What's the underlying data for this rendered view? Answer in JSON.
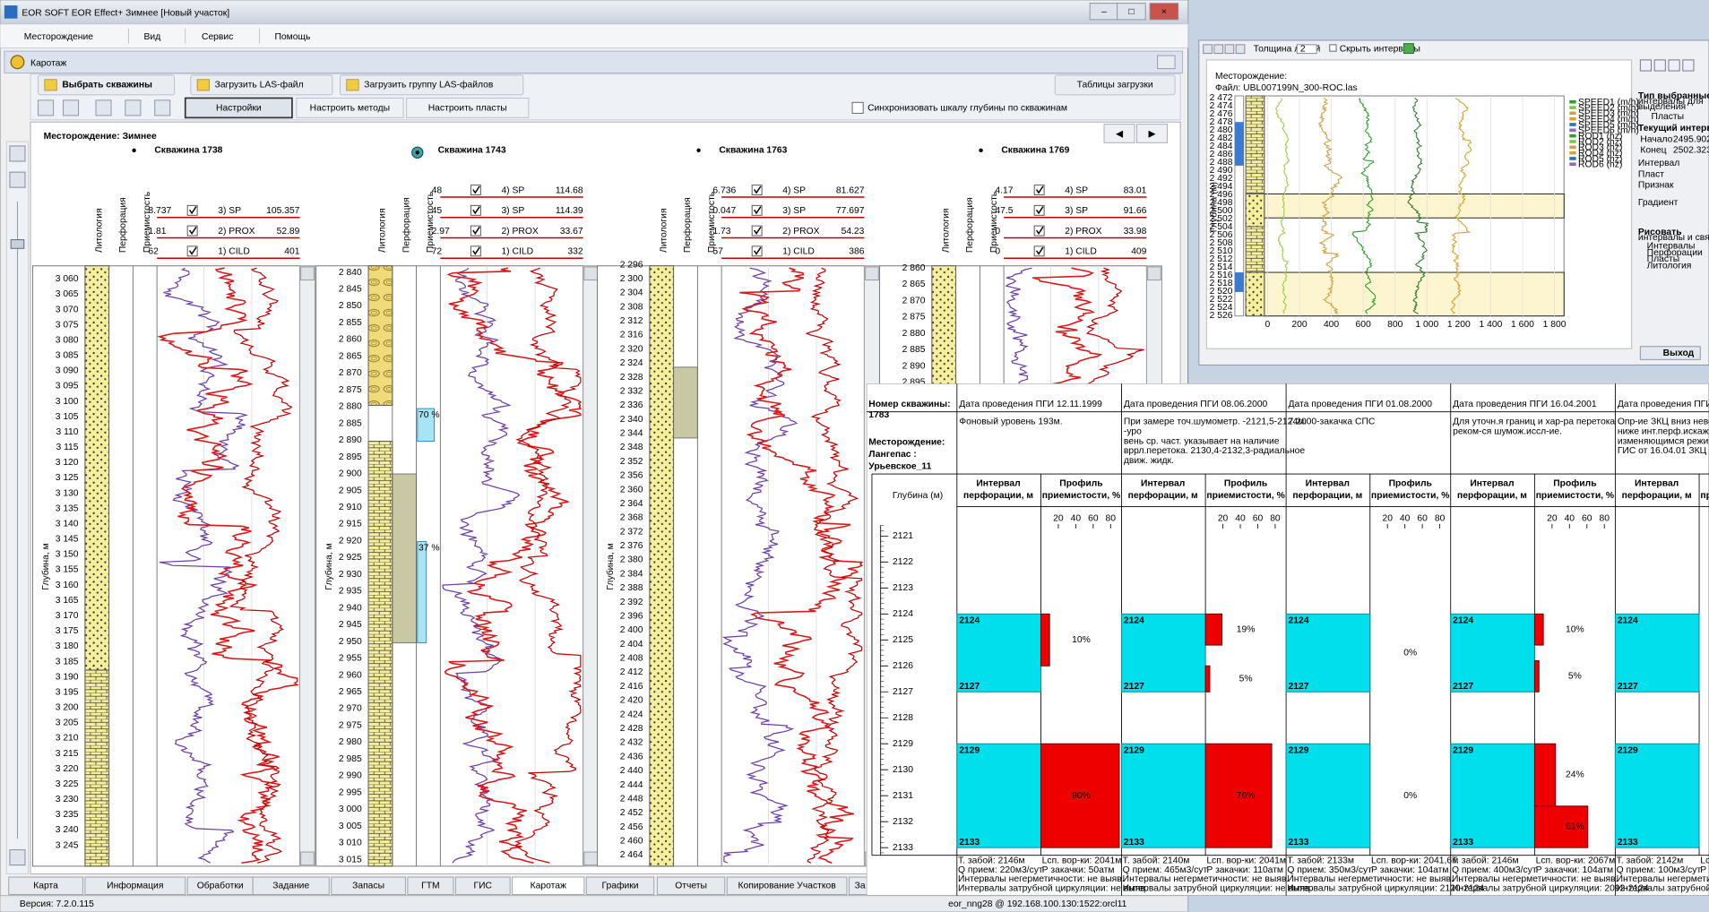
{
  "window": {
    "title": "EOR SOFT    EOR Effect+  Зимнее  [Новый участок]"
  },
  "menu": [
    "Месторождение",
    "Вид",
    "Сервис",
    "Помощь"
  ],
  "panel": {
    "title": "Каротаж",
    "toolbar": [
      "Выбрать скважины",
      "Загрузить LAS-файл",
      "Загрузить группу LAS-файлов",
      "Таблицы загрузки"
    ],
    "settings": [
      "Настройки",
      "Настроить методы",
      "Настроить пласты"
    ],
    "sync": "Синхронизовать шкалу глубины по скважинам"
  },
  "field": "Месторождение: Зимнее",
  "columns": [
    "Литология",
    "Перфорация",
    "Приемистость"
  ],
  "depth_label": "Глубина, м",
  "wells": [
    {
      "name": "Скважина 1738",
      "curves": [
        {
          "name": "3) SP",
          "min": "8.737",
          "max": "105.357",
          "color": "#c00000"
        },
        {
          "name": "2) PROX",
          "min": "1.81",
          "max": "52.89",
          "color": "#c00000"
        },
        {
          "name": "1) CILD",
          "min": "62",
          "max": "401",
          "color": "#c00000"
        }
      ],
      "depths": [
        "3 060",
        "3 065",
        "3 070",
        "3 075",
        "3 080",
        "3 085",
        "3 090",
        "3 095",
        "3 100",
        "3 105",
        "3 110",
        "3 115",
        "3 120",
        "3 125",
        "3 130",
        "3 135",
        "3 140",
        "3 145",
        "3 150",
        "3 155",
        "3 160",
        "3 165",
        "3 170",
        "3 175",
        "3 180",
        "3 185",
        "3 190",
        "3 195",
        "3 200",
        "3 205",
        "3 210",
        "3 215",
        "3 220",
        "3 225",
        "3 230",
        "3 235",
        "3 240",
        "3 245"
      ]
    },
    {
      "name": "Скважина 1743",
      "curves": [
        {
          "name": "4) SP",
          "min": "48",
          "max": "114.68",
          "color": "#c00000"
        },
        {
          "name": "3) SP",
          "min": "45",
          "max": "114.39",
          "color": "#c00000"
        },
        {
          "name": "2) PROX",
          "min": "2.97",
          "max": "33.67",
          "color": "#c00000"
        },
        {
          "name": "1) CILD",
          "min": "72",
          "max": "332",
          "color": "#c00000"
        }
      ],
      "depths": [
        "2 840",
        "2 845",
        "2 850",
        "2 855",
        "2 860",
        "2 865",
        "2 870",
        "2 875",
        "2 880",
        "2 885",
        "2 890",
        "2 895",
        "2 900",
        "2 905",
        "2 910",
        "2 915",
        "2 920",
        "2 925",
        "2 930",
        "2 935",
        "2 940",
        "2 945",
        "2 950",
        "2 955",
        "2 960",
        "2 965",
        "2 970",
        "2 975",
        "2 980",
        "2 985",
        "2 990",
        "2 995",
        "3 000",
        "3 005",
        "3 010",
        "3 015"
      ],
      "injectivity": [
        {
          "value": 70,
          "label": "70 %"
        },
        {
          "value": 37,
          "label": "37 %"
        }
      ]
    },
    {
      "name": "Скважина 1763",
      "curves": [
        {
          "name": "4) SP",
          "min": "6.736",
          "max": "81.627",
          "color": "#c00000"
        },
        {
          "name": "3) SP",
          "min": "0.047",
          "max": "77.697",
          "color": "#c00000"
        },
        {
          "name": "2) PROX",
          "min": "1.73",
          "max": "54.23",
          "color": "#c00000"
        },
        {
          "name": "1) CILD",
          "min": "57",
          "max": "386",
          "color": "#c00000"
        }
      ],
      "depths": [
        "2 296",
        "2 300",
        "2 304",
        "2 308",
        "2 312",
        "2 316",
        "2 320",
        "2 324",
        "2 328",
        "2 332",
        "2 336",
        "2 340",
        "2 344",
        "2 348",
        "2 352",
        "2 356",
        "2 360",
        "2 364",
        "2 368",
        "2 372",
        "2 376",
        "2 380",
        "2 384",
        "2 388",
        "2 392",
        "2 396",
        "2 400",
        "2 404",
        "2 408",
        "2 412",
        "2 416",
        "2 420",
        "2 424",
        "2 428",
        "2 432",
        "2 436",
        "2 440",
        "2 444",
        "2 448",
        "2 452",
        "2 456",
        "2 460",
        "2 464"
      ]
    },
    {
      "name": "Скважина 1769",
      "curves": [
        {
          "name": "4) SP",
          "min": "4.17",
          "max": "83.01",
          "color": "#c00000"
        },
        {
          "name": "3) SP",
          "min": "47.5",
          "max": "91.66",
          "color": "#c00000"
        },
        {
          "name": "2) PROX",
          "min": "0",
          "max": "33.98",
          "color": "#c00000"
        },
        {
          "name": "1) CILD",
          "min": "0",
          "max": "409",
          "color": "#c00000"
        }
      ],
      "depths": [
        "2 860",
        "2 865",
        "2 870",
        "2 875",
        "2 880",
        "2 885",
        "2 890",
        "2 895"
      ]
    }
  ],
  "tabs": [
    "Карта",
    "Информация",
    "Обработки",
    "Задание",
    "Запасы",
    "ГТМ",
    "ГИС",
    "Каротаж",
    "Графики",
    "Отчеты",
    "Копирование Участков",
    "За"
  ],
  "status": {
    "version": "Версия: 7.2.0.115",
    "connection": "eor_nng28 @ 192.168.100.130:1522:orcl11"
  },
  "plot_window": {
    "toolbar": [
      "Толщина линий",
      "2",
      "Скрыть интервалы"
    ],
    "field": "Месторождение:",
    "file": "Файл: UBL007199N_300-ROC.las",
    "depth_label": "Глубина (м)",
    "depths": [
      "2 472",
      "2 474",
      "2 476",
      "2 478",
      "2 480",
      "2 482",
      "2 484",
      "2 486",
      "2 488",
      "2 490",
      "2 492",
      "2 494",
      "2 496",
      "2 498",
      "2 500",
      "2 502",
      "2 504",
      "2 506",
      "2 508",
      "2 510",
      "2 512",
      "2 514",
      "2 516",
      "2 518",
      "2 520",
      "2 522",
      "2 524",
      "2 526"
    ],
    "xlim": [
      0,
      1860
    ],
    "xticks": [
      0,
      200,
      400,
      600,
      800,
      {
        "value": 1000,
        "label": "1 000"
      },
      {
        "value": 1200,
        "label": "1 200"
      },
      {
        "value": 1400,
        "label": "1 400"
      },
      {
        "value": 1600,
        "label": "1 600"
      },
      {
        "value": 1800,
        "label": "1 800"
      }
    ],
    "legend": [
      "SPEED1 (m/h)",
      "SPEED2 (m/h)",
      "SPEED3 (m/h)",
      "SPEED4 (m/h)",
      "SPEED5 (m/h)",
      "SPEED6 (m/h)",
      "ROD1 (hz)",
      "ROD2 (hz)",
      "ROD3 (hz)",
      "ROD4 (hz)",
      "ROD5 (hz)",
      "ROD6 (hz)"
    ],
    "side": [
      "Тип выбранные",
      "интервалы для",
      "выделения",
      "Пласты",
      "Текущий интервал",
      "Начало",
      "2495.902",
      "Конец",
      "2502.323",
      "Интервал",
      "Пласт",
      "Признак",
      "Градиент",
      "Рисовать",
      "интервалы и связи",
      "Интервалы",
      "Перфорации",
      "Пласты",
      "Литология"
    ],
    "exit": "Выход"
  },
  "pgi": {
    "well_label": "Номер скважины:",
    "well": "1783",
    "field_label": "Месторождение:",
    "field": [
      "Лангепас :",
      "Урьевское_11"
    ],
    "depth_header": "Глубина (м)",
    "interval_header": [
      "Интервал",
      "перфорации, м"
    ],
    "profile_header": [
      "Профиль",
      "приемистости, %"
    ],
    "profile_ticks": [
      20,
      40,
      60,
      80
    ],
    "depths": [
      2121,
      2122,
      2123,
      2124,
      2125,
      2126,
      2127,
      2128,
      2129,
      2130,
      2131,
      2132,
      2133
    ],
    "surveys": [
      {
        "date": "Дата проведения ПГИ 12.11.1999",
        "note": [
          "Фоновый уровень 193м."
        ],
        "intervals": [
          [
            2124,
            2127
          ],
          [
            2129,
            2133
          ]
        ],
        "profile": [
          {
            "from": 2124,
            "to": 2126,
            "value": 10,
            "label": "10%"
          },
          {
            "from": 2129,
            "to": 2133,
            "value": 90,
            "label": "90%"
          }
        ],
        "footer": [
          [
            "Т. забой: 2146м",
            "Lсп. вор-ки: 2041м"
          ],
          [
            "Q прием: 220м3/сут",
            "Р закачки: 50атм"
          ],
          [
            "Интервалы негерметичности: не выяв."
          ],
          [
            "Интервалы затрубной циркуляции: не выяв."
          ]
        ]
      },
      {
        "date": "Дата проведения ПГИ 08.06.2000",
        "note": [
          "При замере точ.шумометр. -2121,5-2124м.",
          "-уро",
          "вень ср. част. указывает на наличие",
          "вррл.перетока. 2130,4-2132,3-радиальное",
          "движ. жидк."
        ],
        "intervals": [
          [
            2124,
            2127
          ],
          [
            2129,
            2133
          ]
        ],
        "profile": [
          {
            "from": 2124,
            "to": 2125.2,
            "value": 19,
            "label": "19%"
          },
          {
            "from": 2126,
            "to": 2127,
            "value": 5,
            "label": "5%"
          },
          {
            "from": 2129,
            "to": 2133,
            "value": 76,
            "label": "76%"
          }
        ],
        "footer": [
          [
            "Т. забой: 2140м",
            "Lсп. вор-ки: 2041м"
          ],
          [
            "Q прием: 465м3/сут",
            "Р закачки: 110атм"
          ],
          [
            "Интервалы негерметичности: не выяв."
          ],
          [
            "Интервалы затрубной циркуляции: не выяв."
          ]
        ]
      },
      {
        "date": "Дата проведения ПГИ 01.08.2000",
        "note": [
          "7.2000-закачка СПС"
        ],
        "intervals": [
          [
            2124,
            2127
          ],
          [
            2129,
            2133
          ]
        ],
        "profile": [
          {
            "from": 2124,
            "to": 2127,
            "value": 0,
            "label": "0%"
          },
          {
            "from": 2129,
            "to": 2133,
            "value": 0,
            "label": "0%"
          }
        ],
        "footer": [
          [
            "Т. забой: 2133м",
            "Lсп. вор-ки: 2041,6м"
          ],
          [
            "Q прием: 350м3/сут",
            "Р закачки: 104атм"
          ],
          [
            "Интервалы негерметичности: не выяв."
          ],
          [
            "Интервалы затрубной циркуляции: 2120-2124"
          ]
        ]
      },
      {
        "date": "Дата проведения ПГИ 16.04.2001",
        "note": [
          "Для уточн.я границ и хар-ра перетока",
          "реком-ся шумож.иссл-ие."
        ],
        "intervals": [
          [
            2124,
            2127
          ],
          [
            2129,
            2133
          ]
        ],
        "profile": [
          {
            "from": 2124,
            "to": 2125.2,
            "value": 10,
            "label": "10%"
          },
          {
            "from": 2125.8,
            "to": 2127,
            "value": 5,
            "label": "5%"
          },
          {
            "from": 2129,
            "to": 2131.4,
            "value": 24,
            "label": "24%"
          },
          {
            "from": 2131.4,
            "to": 2133,
            "value": 61,
            "label": "61%"
          }
        ],
        "footer": [
          [
            "Т. забой: 2146м",
            "Lсп. вор-ки: 2067м"
          ],
          [
            "Q прием: 400м3/сут",
            "Р закачки: 104атм"
          ],
          [
            "Интервалы негерметичности: не выяв."
          ],
          [
            "Интервалы затрубной циркуляции: 2092-2124"
          ]
        ]
      },
      {
        "date": "Дата проведения ПГИ",
        "note": [
          "Опр-ие ЗКЦ вниз невоз-н",
          "ниже инт.перф.искажены",
          "изменяющимся режимом с",
          "ГИС от 16.04.01 ЗКЦ в"
        ],
        "intervals": [
          [
            2124,
            2127
          ],
          [
            2129,
            2133
          ]
        ],
        "profile": [],
        "footer": [
          [
            "Т. забой: 2142м",
            "Lсп. вор-ки:"
          ],
          [
            "Q прием: 100м3/сут",
            "Р закачки:"
          ],
          [
            "Интервалы негерметичности: не выя"
          ],
          [
            "Интервалы затрубной циркуляции"
          ]
        ]
      }
    ]
  }
}
